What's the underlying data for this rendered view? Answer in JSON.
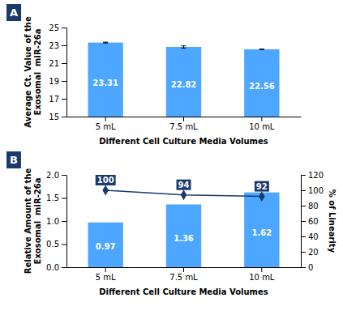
{
  "chart_data": [
    {
      "type": "bar",
      "title": "A",
      "categories": [
        "5 mL",
        "7.5 mL",
        "10 mL"
      ],
      "values": [
        23.31,
        22.82,
        22.56
      ],
      "errors": [
        0.05,
        0.12,
        0.03
      ],
      "color": "#4da6ff",
      "ylim": [
        15,
        25
      ],
      "yticks": [
        15,
        17,
        19,
        21,
        23,
        25
      ],
      "ylabel": "Average Ct. Value of the\nExosomal  miR-26a",
      "xlabel": "Different Cell Culture Media Volumes",
      "data_labels": true
    },
    {
      "type": "bar",
      "title": "B",
      "categories": [
        "5 mL",
        "7.5 mL",
        "10 mL"
      ],
      "series": [
        {
          "type": "bar",
          "color": "#4da6ff",
          "values": [
            0.97,
            1.36,
            1.62
          ]
        },
        {
          "type": "line",
          "axis": "y2",
          "color": "#1a3a6b",
          "marker": "diamond",
          "values": [
            100,
            94,
            92
          ]
        }
      ],
      "ylim": [
        0.0,
        2.0
      ],
      "yticks": [
        {
          "value": 0,
          "label": "0.0"
        },
        0.5,
        {
          "value": 1,
          "label": "1.0"
        },
        1.5,
        {
          "value": 2,
          "label": "2.0"
        }
      ],
      "y2lim": [
        0,
        120
      ],
      "y2ticks": [
        0,
        20,
        40,
        60,
        80,
        100,
        120
      ],
      "ylabel": "Relative Amount of the\nExosomal  miR-26a",
      "y2label": "% of Linearity",
      "xlabel": "Different Cell Culture Media Volumes",
      "data_labels": true
    }
  ]
}
